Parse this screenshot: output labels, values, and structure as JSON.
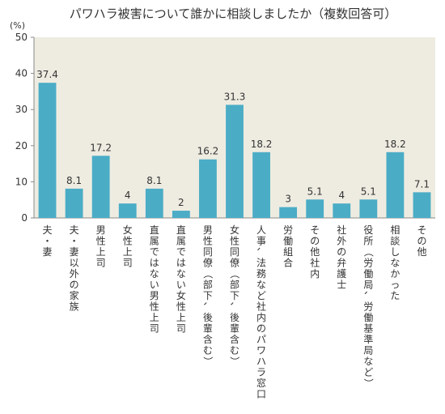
{
  "chart_data": {
    "type": "bar",
    "title": "パワハラ被害について誰かに相談しましたか（複数回答可）",
    "ylabel": "(%)",
    "ylim": [
      0,
      50
    ],
    "yticks": [
      0,
      10,
      20,
      30,
      40,
      50
    ],
    "grid": false,
    "categories": [
      "夫・妻",
      "夫・妻以外の家族",
      "男性上司",
      "女性上司",
      "直属ではない男性上司",
      "直属ではない女性上司",
      "男性同僚（部下、後輩含む）",
      "女性同僚（部下、後輩含む）",
      "人事、法務など社内のパワハラ窓口",
      "労働組合",
      "その他社内",
      "社外の弁護士",
      "役所（労働局、労働基準局など）",
      "相談しなかった",
      "その他"
    ],
    "values": [
      37.4,
      8.1,
      17.2,
      4,
      8.1,
      2,
      16.2,
      31.3,
      18.2,
      3,
      5.1,
      4,
      5.1,
      18.2,
      7.1
    ],
    "value_labels": [
      "37.4",
      "8.1",
      "17.2",
      "4",
      "8.1",
      "2",
      "16.2",
      "31.3",
      "18.2",
      "3",
      "5.1",
      "4",
      "5.1",
      "18.2",
      "7.1"
    ],
    "colors": {
      "plot_bg": "#EEECE1",
      "bar": "#4BACC6"
    }
  }
}
